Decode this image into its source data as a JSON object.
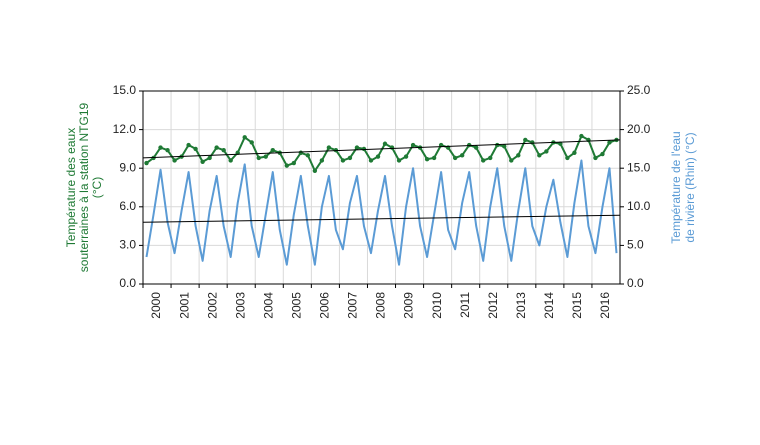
{
  "chart_data": {
    "type": "line",
    "x": [
      2000.125,
      2000.375,
      2000.625,
      2000.875,
      2001.125,
      2001.375,
      2001.625,
      2001.875,
      2002.125,
      2002.375,
      2002.625,
      2002.875,
      2003.125,
      2003.375,
      2003.625,
      2003.875,
      2004.125,
      2004.375,
      2004.625,
      2004.875,
      2005.125,
      2005.375,
      2005.625,
      2005.875,
      2006.125,
      2006.375,
      2006.625,
      2006.875,
      2007.125,
      2007.375,
      2007.625,
      2007.875,
      2008.125,
      2008.375,
      2008.625,
      2008.875,
      2009.125,
      2009.375,
      2009.625,
      2009.875,
      2010.125,
      2010.375,
      2010.625,
      2010.875,
      2011.125,
      2011.375,
      2011.625,
      2011.875,
      2012.125,
      2012.375,
      2012.625,
      2012.875,
      2013.125,
      2013.375,
      2013.625,
      2013.875,
      2014.125,
      2014.375,
      2014.625,
      2014.875,
      2015.125,
      2015.375,
      2015.625,
      2015.875,
      2016.125,
      2016.375,
      2016.625,
      2016.875
    ],
    "xlim": [
      2000,
      2017
    ],
    "xticks": [
      2000,
      2001,
      2002,
      2003,
      2004,
      2005,
      2006,
      2007,
      2008,
      2009,
      2010,
      2011,
      2012,
      2013,
      2014,
      2015,
      2016
    ],
    "ylim": [
      0,
      15
    ],
    "yticks": [
      {
        "value": 0,
        "label": "0.0"
      },
      {
        "value": 3,
        "label": "3.0"
      },
      {
        "value": 6,
        "label": "6.0"
      },
      {
        "value": 9,
        "label": "9.0"
      },
      {
        "value": 12,
        "label": "12.0"
      },
      {
        "value": 15,
        "label": "15.0"
      }
    ],
    "y2lim": [
      0,
      25
    ],
    "y2ticks": [
      {
        "value": 0,
        "label": "0.0"
      },
      {
        "value": 5,
        "label": "5.0"
      },
      {
        "value": 10,
        "label": "10.0"
      },
      {
        "value": 15,
        "label": "15.0"
      },
      {
        "value": 20,
        "label": "20.0"
      },
      {
        "value": 25,
        "label": "25.0"
      }
    ],
    "ylabel": [
      "Température des eaux",
      "souterraines à la station NTG19",
      "(°C)"
    ],
    "y2label": [
      "Température de l'eau",
      "de rivière (Rhin) (°C)"
    ],
    "grid": true,
    "series": [
      {
        "color": "#1f7a35",
        "values": [
          9.4,
          9.8,
          10.6,
          10.4,
          9.6,
          9.9,
          10.8,
          10.5,
          9.5,
          9.8,
          10.6,
          10.4,
          9.6,
          10.2,
          11.4,
          11.0,
          9.8,
          9.9,
          10.4,
          10.2,
          9.2,
          9.4,
          10.2,
          10.0,
          8.8,
          9.6,
          10.6,
          10.4,
          9.6,
          9.8,
          10.6,
          10.5,
          9.6,
          9.9,
          10.9,
          10.6,
          9.6,
          9.9,
          10.8,
          10.6,
          9.7,
          9.8,
          10.8,
          10.6,
          9.8,
          10.0,
          10.8,
          10.6,
          9.6,
          9.8,
          10.8,
          10.7,
          9.6,
          10.0,
          11.2,
          11.0,
          10.0,
          10.3,
          11.0,
          10.9,
          9.8,
          10.2,
          11.5,
          11.2,
          9.8,
          10.1,
          11.0,
          11.2
        ]
      },
      {
        "color": "#5b9bd5",
        "axis": "y2",
        "values": [
          3.5,
          9.0,
          14.8,
          8.0,
          4.0,
          9.5,
          14.5,
          7.5,
          3.0,
          9.5,
          14.0,
          7.5,
          3.5,
          10.5,
          15.5,
          7.5,
          3.5,
          9.0,
          14.5,
          7.0,
          2.5,
          9.0,
          14.0,
          7.5,
          2.5,
          10.0,
          14.0,
          7.0,
          4.5,
          10.5,
          14.0,
          7.5,
          4.0,
          9.5,
          14.0,
          7.5,
          2.5,
          10.0,
          15.0,
          7.5,
          3.5,
          9.0,
          14.5,
          7.0,
          4.5,
          10.5,
          14.5,
          7.5,
          3.0,
          10.0,
          15.0,
          7.5,
          3.0,
          9.5,
          15.0,
          7.5,
          5.0,
          10.0,
          13.5,
          8.0,
          3.5,
          10.5,
          16.0,
          7.5,
          4.0,
          10.0,
          15.0,
          4.0
        ]
      }
    ],
    "trends": [
      {
        "color": "#000000",
        "x": [
          2000,
          2017
        ],
        "values": [
          9.8,
          11.2
        ]
      },
      {
        "color": "#000000",
        "axis": "y2",
        "x": [
          2000,
          2017
        ],
        "values": [
          8.0,
          8.9
        ]
      }
    ]
  }
}
